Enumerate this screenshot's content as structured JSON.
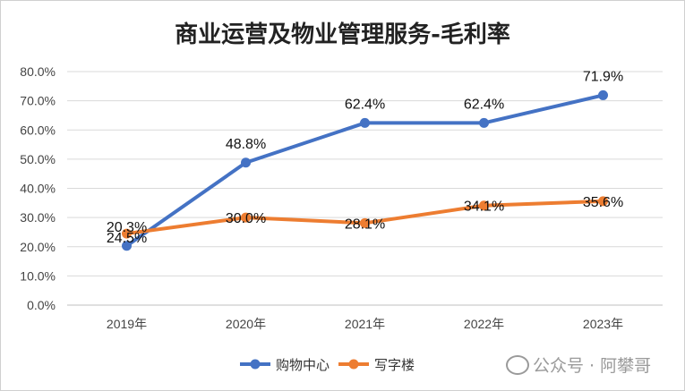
{
  "chart_data": {
    "type": "line",
    "title": "商业运营及物业管理服务-毛利率",
    "categories": [
      "2019年",
      "2020年",
      "2021年",
      "2022年",
      "2023年"
    ],
    "series": [
      {
        "name": "购物中心",
        "values": [
          20.3,
          48.8,
          62.4,
          62.4,
          71.9
        ],
        "labels": [
          "20.3%",
          "48.8%",
          "62.4%",
          "62.4%",
          "71.9%"
        ],
        "color": "#4472C4"
      },
      {
        "name": "写字楼",
        "values": [
          24.5,
          30.0,
          28.1,
          34.1,
          35.6
        ],
        "labels": [
          "24.5%",
          "30.0%",
          "28.1%",
          "34.1%",
          "35.6%"
        ],
        "color": "#ED7D31"
      }
    ],
    "ylim": [
      0,
      80
    ],
    "yticks": [
      "0.0%",
      "10.0%",
      "20.0%",
      "30.0%",
      "40.0%",
      "50.0%",
      "60.0%",
      "70.0%",
      "80.0%"
    ],
    "grid": true,
    "legend": "bottom"
  },
  "watermark": "公众号 · 阿攀哥"
}
